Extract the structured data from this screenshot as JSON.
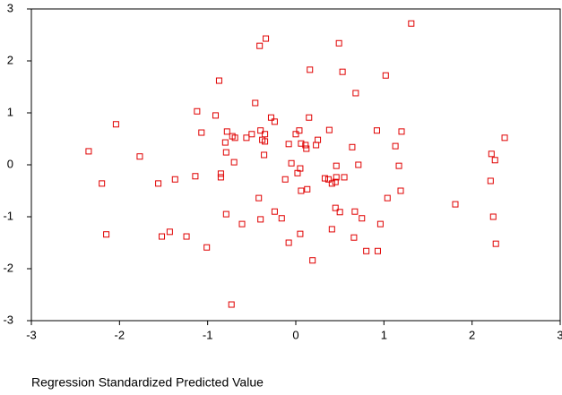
{
  "chart_data": {
    "type": "scatter",
    "x_label": "Regression Standardized Predicted Value",
    "color": "#e00000",
    "xlim": [
      -3,
      3
    ],
    "xticks": [
      -3,
      -2,
      -1,
      0,
      1,
      2,
      3
    ],
    "ylim": [
      -3,
      3
    ],
    "yticks": [
      -3,
      -2,
      -1,
      0,
      1,
      2,
      3
    ],
    "x": [
      1.31,
      -0.34,
      -0.41,
      0.49,
      0.16,
      0.53,
      -0.87,
      1.02,
      0.68,
      -0.46,
      -1.12,
      -0.28,
      -0.91,
      -0.24,
      0.15,
      -2.04,
      -1.07,
      -0.78,
      -0.5,
      -0.4,
      -0.35,
      -0.72,
      -0.69,
      -0.56,
      -0.38,
      -0.35,
      0.04,
      0.0,
      0.38,
      0.92,
      1.2,
      -0.8,
      0.25,
      -0.08,
      0.11,
      0.06,
      0.23,
      0.64,
      1.13,
      2.37,
      -2.35,
      -0.79,
      -0.36,
      0.12,
      -1.77,
      2.22,
      2.26,
      -0.7,
      -0.05,
      0.71,
      0.46,
      1.17,
      0.05,
      0.02,
      -0.85,
      -0.85,
      -1.14,
      -1.37,
      -0.12,
      0.33,
      0.37,
      0.46,
      0.55,
      0.45,
      0.41,
      -2.2,
      -1.56,
      2.21,
      0.13,
      0.06,
      1.19,
      1.81,
      -0.42,
      1.04,
      -0.79,
      -0.24,
      -0.16,
      0.45,
      0.5,
      0.67,
      0.75,
      2.24,
      -0.4,
      -0.61,
      0.96,
      -2.15,
      -1.52,
      -1.43,
      -1.24,
      0.05,
      0.41,
      0.66,
      -0.08,
      -1.01,
      2.27,
      0.8,
      0.93,
      0.19,
      -0.73
    ],
    "values": [
      2.72,
      2.43,
      2.29,
      2.34,
      1.83,
      1.79,
      1.62,
      1.72,
      1.38,
      1.19,
      1.03,
      0.91,
      0.95,
      0.83,
      0.91,
      0.78,
      0.62,
      0.64,
      0.59,
      0.66,
      0.59,
      0.55,
      0.52,
      0.52,
      0.48,
      0.45,
      0.66,
      0.59,
      0.67,
      0.66,
      0.64,
      0.43,
      0.48,
      0.4,
      0.38,
      0.41,
      0.38,
      0.34,
      0.36,
      0.52,
      0.26,
      0.24,
      0.19,
      0.31,
      0.16,
      0.21,
      0.09,
      0.05,
      0.03,
      0.0,
      -0.02,
      -0.02,
      -0.07,
      -0.16,
      -0.17,
      -0.24,
      -0.22,
      -0.28,
      -0.28,
      -0.26,
      -0.28,
      -0.24,
      -0.24,
      -0.33,
      -0.36,
      -0.36,
      -0.36,
      -0.31,
      -0.47,
      -0.5,
      -0.5,
      -0.76,
      -0.64,
      -0.64,
      -0.95,
      -0.9,
      -1.03,
      -0.83,
      -0.91,
      -0.9,
      -1.03,
      -1.0,
      -1.05,
      -1.14,
      -1.14,
      -1.34,
      -1.38,
      -1.29,
      -1.38,
      -1.33,
      -1.24,
      -1.4,
      -1.5,
      -1.59,
      -1.52,
      -1.66,
      -1.66,
      -1.84,
      -2.69
    ]
  }
}
